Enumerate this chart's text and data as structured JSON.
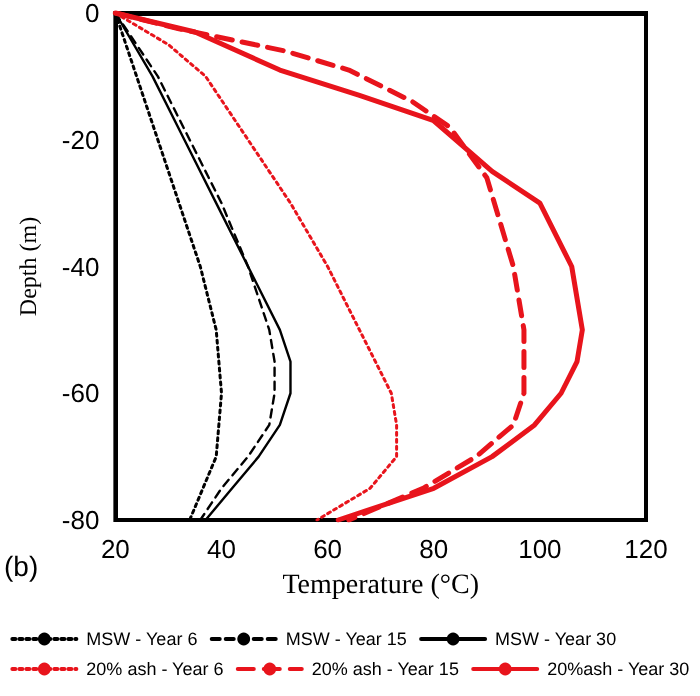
{
  "chart_data": {
    "type": "line",
    "xlabel": "Temperature (°C)",
    "ylabel": "Depth (m)",
    "xlim": [
      20,
      120
    ],
    "xticks": [
      20,
      40,
      60,
      80,
      100,
      120
    ],
    "ylim": [
      -80,
      0
    ],
    "yticks": [
      -80,
      -60,
      -40,
      -20,
      0
    ],
    "grid": false,
    "legend": "bottom",
    "marker": "none",
    "annotations": [
      "(b)"
    ],
    "series": [
      {
        "name": "MSW - Year 6",
        "color": "#000000",
        "line_style": "dotted",
        "x": [
          20,
          24,
          28,
          32,
          36,
          39,
          40,
          39,
          34
        ],
        "values": [
          0,
          -10,
          -20,
          -30,
          -40,
          -50,
          -60,
          -70,
          -80
        ]
      },
      {
        "name": "MSW - Year 15",
        "color": "#000000",
        "line_style": "dashed",
        "x": [
          20,
          24,
          28,
          34,
          40,
          45,
          49,
          50,
          50,
          49,
          45,
          40,
          36
        ],
        "values": [
          0,
          -5,
          -10,
          -20,
          -30,
          -40,
          -50,
          -55,
          -60,
          -65,
          -70,
          -75,
          -80
        ]
      },
      {
        "name": "MSW - Year 30",
        "color": "#000000",
        "line_style": "solid",
        "x": [
          20,
          27,
          33,
          39,
          45,
          51,
          53,
          53,
          51,
          47,
          42,
          37
        ],
        "values": [
          0,
          -10,
          -20,
          -30,
          -40,
          -50,
          -55,
          -60,
          -65,
          -70,
          -75,
          -80
        ]
      },
      {
        "name": "20% ash - Year 6",
        "color": "#e8141c",
        "line_style": "dotted",
        "x": [
          20,
          30,
          37,
          45,
          53,
          60,
          66,
          72,
          73,
          73,
          68,
          58
        ],
        "values": [
          0,
          -5,
          -10,
          -20,
          -30,
          -40,
          -50,
          -60,
          -65,
          -70,
          -75,
          -80
        ]
      },
      {
        "name": "20% ash - Year 15",
        "color": "#e8141c",
        "line_style": "dashed",
        "x": [
          20,
          32,
          52,
          64,
          76,
          83,
          90,
          95,
          97,
          97,
          95,
          88,
          78,
          64
        ],
        "values": [
          0,
          -2.5,
          -6,
          -9,
          -14,
          -18,
          -26,
          -40,
          -50,
          -60,
          -65,
          -70,
          -75,
          -80
        ]
      },
      {
        "name": "20%ash - Year 30",
        "color": "#e8141c",
        "line_style": "solid",
        "x": [
          20,
          35,
          51,
          66,
          80,
          91,
          100,
          106,
          108,
          107,
          104,
          99,
          91,
          80,
          62
        ],
        "values": [
          0,
          -3,
          -9,
          -13,
          -17,
          -25,
          -30,
          -40,
          -50,
          -55,
          -60,
          -65,
          -70,
          -75,
          -80
        ]
      }
    ]
  }
}
